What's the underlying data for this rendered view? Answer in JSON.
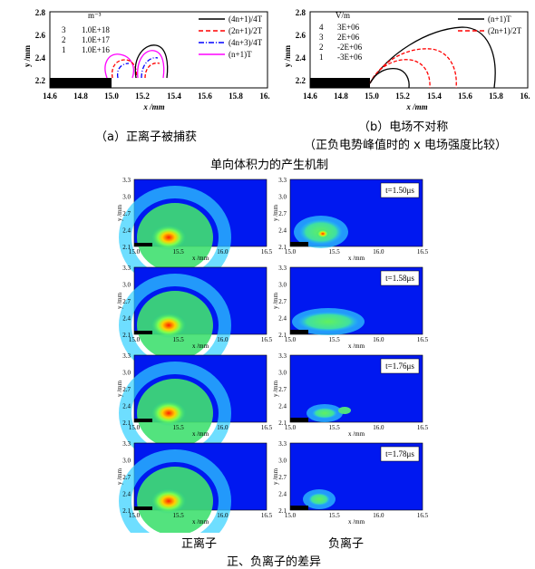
{
  "captions": {
    "fig_a": "（a）正离子被捕获",
    "fig_b": "（b）电场不对称",
    "fig_b_sub": "（正负电势峰值时的 x 电场强度比较）",
    "title_1": "单向体积力的产生机制",
    "col_positive": "正离子",
    "col_negative": "负离子",
    "title_2": "正、负离子的差异"
  },
  "chart_data": [
    {
      "type": "line",
      "name": "plot_a",
      "xlabel": "x /mm",
      "ylabel": "y /mm",
      "xlim": [
        14.6,
        16.0
      ],
      "ylim": [
        2.15,
        2.8
      ],
      "xticks": [
        "14.6",
        "14.8",
        "15.0",
        "15.2",
        "15.4",
        "15.6",
        "15.8",
        "16."
      ],
      "yticks": [
        "2.8",
        "2.6",
        "2.4",
        "2.2"
      ],
      "level_table": {
        "unit": "m⁻³",
        "rows": [
          [
            "3",
            "1.0E+18"
          ],
          [
            "2",
            "1.0E+17"
          ],
          [
            "1",
            "1.0E+16"
          ]
        ]
      },
      "series": [
        {
          "name": "(4n+1)/4T",
          "color": "#000000",
          "dash": "solid"
        },
        {
          "name": "(2n+1)/2T",
          "color": "#ff0000",
          "dash": "dashed"
        },
        {
          "name": "(4n+3)/4T",
          "color": "#0000ff",
          "dash": "dashdot"
        },
        {
          "name": "(n+1)T",
          "color": "#ff00ff",
          "dash": "solid"
        }
      ]
    },
    {
      "type": "line",
      "name": "plot_b",
      "xlabel": "x /mm",
      "ylabel": "y /mm",
      "xlim": [
        14.6,
        16.0
      ],
      "ylim": [
        2.15,
        2.8
      ],
      "xticks": [
        "14.6",
        "14.8",
        "15.0",
        "15.2",
        "15.4",
        "15.6",
        "15.8",
        "16."
      ],
      "yticks": [
        "2.8",
        "2.6",
        "2.4",
        "2.2"
      ],
      "level_table": {
        "unit": "V/m",
        "rows": [
          [
            "4",
            "3E+06"
          ],
          [
            "3",
            "2E+06"
          ],
          [
            "2",
            "-2E+06"
          ],
          [
            "1",
            "-3E+06"
          ]
        ]
      },
      "series": [
        {
          "name": "(n+1)T",
          "color": "#000000",
          "dash": "solid"
        },
        {
          "name": "(2n+1)/2T",
          "color": "#ff0000",
          "dash": "dashed"
        }
      ]
    },
    {
      "type": "heatmap",
      "name": "density_panels",
      "xlabel": "x /mm",
      "ylabel": "y /mm",
      "xticks": [
        "15.0",
        "15.5",
        "16.0",
        "16.5"
      ],
      "yticks": [
        "3.3",
        "3.0",
        "2.7",
        "2.4",
        "2.1"
      ],
      "times": [
        "t=1.50μs",
        "t=1.58μs",
        "t=1.76μs",
        "t=1.78μs"
      ]
    }
  ]
}
